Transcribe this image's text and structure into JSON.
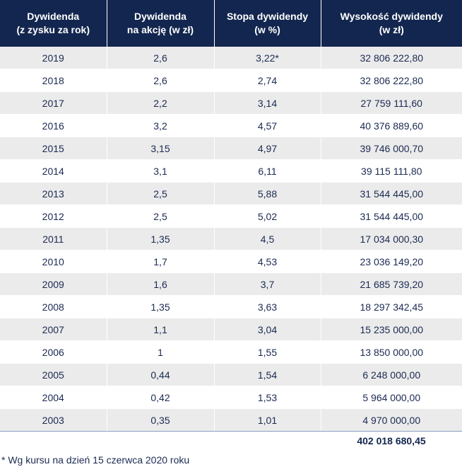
{
  "table": {
    "headers": [
      [
        "Dywidenda",
        "(z zysku za rok)"
      ],
      [
        "Dywidenda",
        "na akcję (w zł)"
      ],
      [
        "Stopa dywidendy",
        "(w %)"
      ],
      [
        "Wysokość dywidendy",
        "(w zł)"
      ]
    ],
    "rows": [
      [
        "2019",
        "2,6",
        "3,22*",
        "32 806 222,80"
      ],
      [
        "2018",
        "2,6",
        "2,74",
        "32 806 222,80"
      ],
      [
        "2017",
        "2,2",
        "3,14",
        "27 759 111,60"
      ],
      [
        "2016",
        "3,2",
        "4,57",
        "40 376 889,60"
      ],
      [
        "2015",
        "3,15",
        "4,97",
        "39 746 000,70"
      ],
      [
        "2014",
        "3,1",
        "6,11",
        "39 115 111,80"
      ],
      [
        "2013",
        "2,5",
        "5,88",
        "31 544 445,00"
      ],
      [
        "2012",
        "2,5",
        "5,02",
        "31 544 445,00"
      ],
      [
        "2011",
        "1,35",
        "4,5",
        "17 034 000,30"
      ],
      [
        "2010",
        "1,7",
        "4,53",
        "23 036 149,20"
      ],
      [
        "2009",
        "1,6",
        "3,7",
        "21 685 739,20"
      ],
      [
        "2008",
        "1,35",
        "3,63",
        "18 297 342,45"
      ],
      [
        "2007",
        "1,1",
        "3,04",
        "15 235 000,00"
      ],
      [
        "2006",
        "1",
        "1,55",
        "13 850 000,00"
      ],
      [
        "2005",
        "0,44",
        "1,54",
        "6 248 000,00"
      ],
      [
        "2004",
        "0,42",
        "1,53",
        "5 964 000,00"
      ],
      [
        "2003",
        "0,35",
        "1,01",
        "4 970 000,00"
      ]
    ],
    "total": "402 018 680,45"
  },
  "footnote": "* Wg kursu na dzień 15 czerwca 2020 roku",
  "colors": {
    "header_bg": "#13264f",
    "stripe": "#ebebeb",
    "text": "#1b2a52"
  }
}
